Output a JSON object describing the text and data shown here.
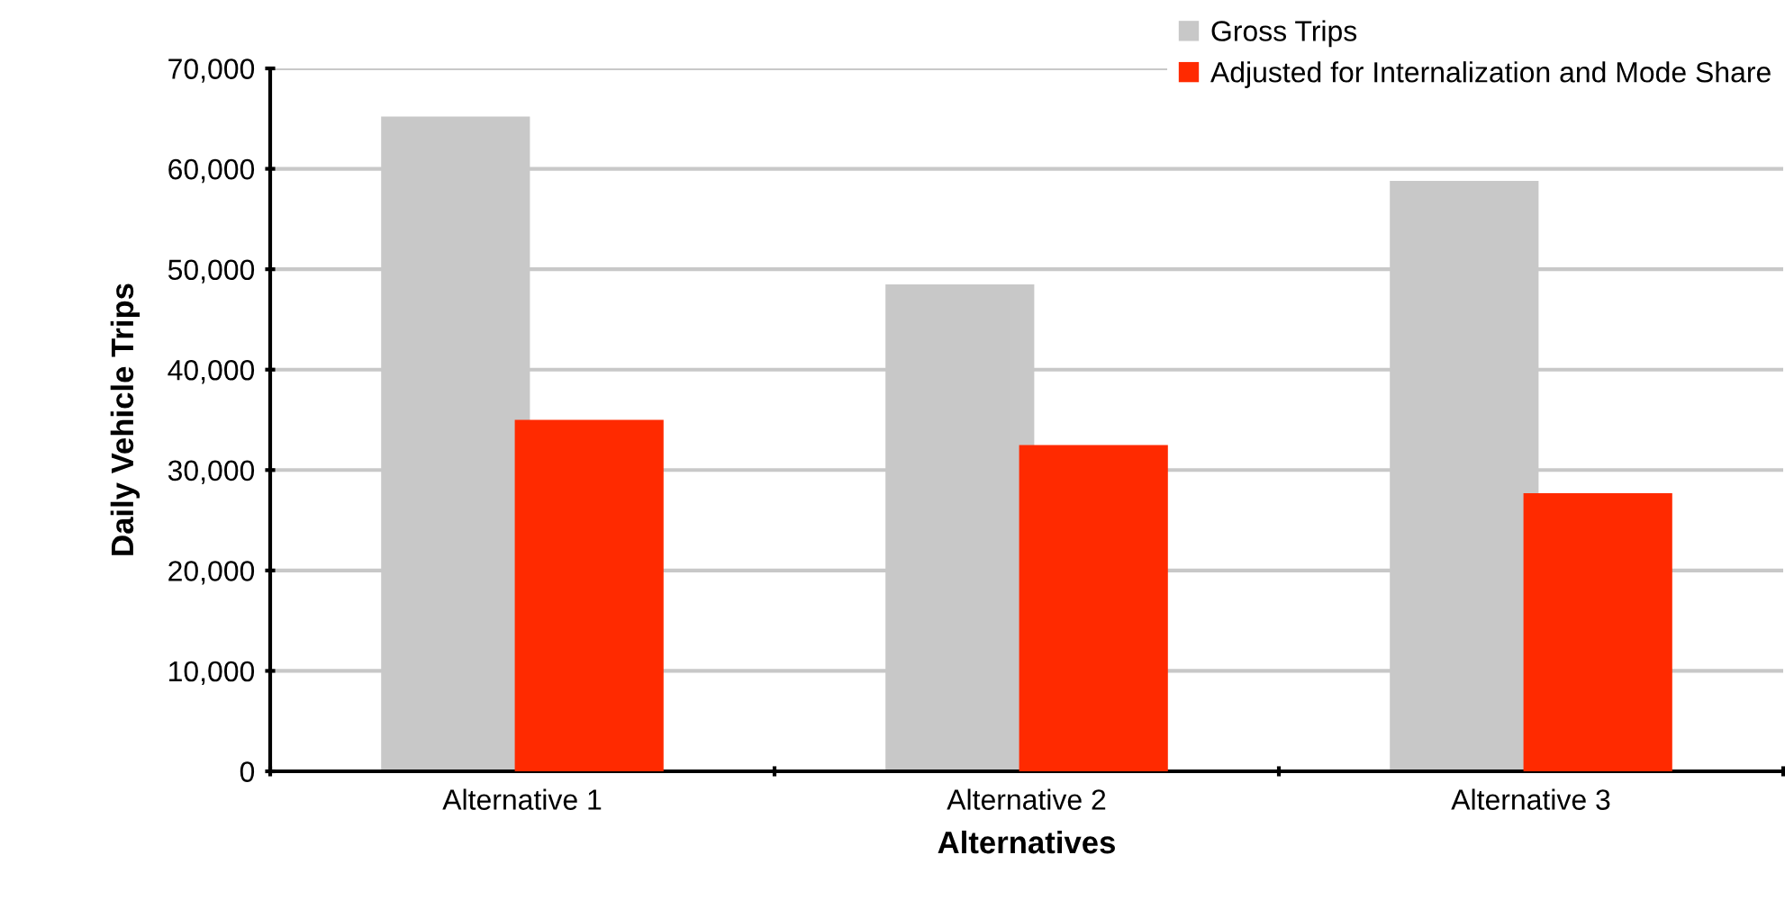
{
  "chart_data": {
    "type": "bar",
    "xlabel": "Alternatives",
    "ylabel": "Daily Vehicle Trips",
    "categories": [
      "Alternative 1",
      "Alternative 2",
      "Alternative 3"
    ],
    "series": [
      {
        "name": "Gross Trips",
        "color": "#c8c8c8",
        "values": [
          65200,
          48500,
          58800
        ]
      },
      {
        "name": "Adjusted for Internalization and Mode Share",
        "color": "#ff2a00",
        "values": [
          35000,
          32500,
          27700
        ]
      }
    ],
    "ylim": [
      0,
      70000
    ],
    "yticks": [
      {
        "value": 0,
        "label": "0"
      },
      {
        "value": 10000,
        "label": "10,000"
      },
      {
        "value": 20000,
        "label": "20,000"
      },
      {
        "value": 30000,
        "label": "30,000"
      },
      {
        "value": 40000,
        "label": "40,000"
      },
      {
        "value": 50000,
        "label": "50,000"
      },
      {
        "value": 60000,
        "label": "60,000"
      },
      {
        "value": 70000,
        "label": "70,000"
      }
    ],
    "grid": "y",
    "legend": "top right"
  }
}
